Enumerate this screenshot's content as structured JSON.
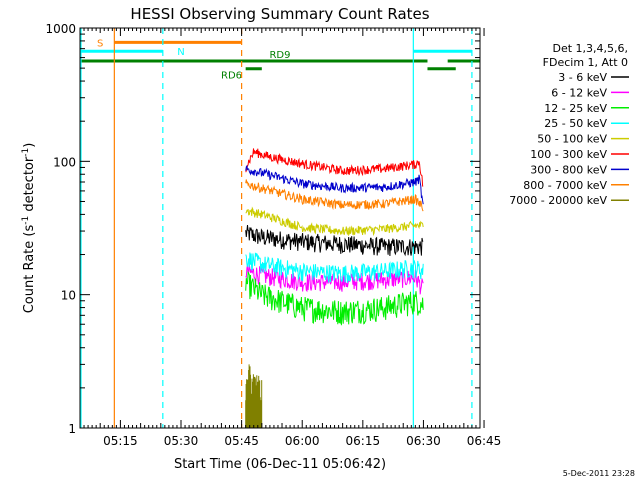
{
  "chart_data": {
    "type": "line",
    "title": "HESSI Observing Summary Count Rates",
    "xlabel": "Start Time (06-Dec-11 05:06:42)",
    "ylabel_main": "Count Rate (s",
    "ylabel_sup1": "-1",
    "ylabel_mid": " detector",
    "ylabel_sup2": "-1",
    "ylabel_end": ")",
    "yscale": "log",
    "ylim": [
      1,
      1000
    ],
    "xlim_minutes": [
      5.0,
      104.0
    ],
    "x_ticks": [
      {
        "label": "05:15",
        "minutes": 15
      },
      {
        "label": "05:30",
        "minutes": 30
      },
      {
        "label": "05:45",
        "minutes": 45
      },
      {
        "label": "06:00",
        "minutes": 60
      },
      {
        "label": "06:15",
        "minutes": 75
      },
      {
        "label": "06:30",
        "minutes": 90
      },
      {
        "label": "06:45",
        "minutes": 105
      }
    ],
    "y_ticks": [
      {
        "label": "1",
        "value": 1
      },
      {
        "label": "10",
        "value": 10
      },
      {
        "label": "100",
        "value": 100
      },
      {
        "label": "1000",
        "value": 1000
      }
    ],
    "legend": {
      "header1": "Det 1,3,4,5,6,",
      "header2": "FDecim 1, Att 0",
      "placement": "right"
    },
    "series": [
      {
        "name": "3 - 6 keV",
        "color": "#000000",
        "points": [
          [
            46,
            29
          ],
          [
            50,
            27
          ],
          [
            60,
            25
          ],
          [
            70,
            24
          ],
          [
            80,
            23
          ],
          [
            88,
            23
          ],
          [
            90,
            23
          ]
        ]
      },
      {
        "name": "6 - 12 keV",
        "color": "#ff00ff",
        "points": [
          [
            46,
            15
          ],
          [
            50,
            14
          ],
          [
            60,
            12.5
          ],
          [
            70,
            12.5
          ],
          [
            80,
            13
          ],
          [
            88,
            13.5
          ],
          [
            90,
            11
          ]
        ]
      },
      {
        "name": "12 - 25 keV",
        "color": "#00ee00",
        "points": [
          [
            46,
            12.5
          ],
          [
            50,
            10
          ],
          [
            60,
            8
          ],
          [
            70,
            7.5
          ],
          [
            80,
            8
          ],
          [
            88,
            9
          ],
          [
            90,
            8.5
          ]
        ]
      },
      {
        "name": "25 - 50 keV",
        "color": "#00ffff",
        "points": [
          [
            46,
            19
          ],
          [
            50,
            17
          ],
          [
            60,
            15
          ],
          [
            70,
            14.5
          ],
          [
            80,
            15
          ],
          [
            88,
            16
          ],
          [
            90,
            15
          ]
        ]
      },
      {
        "name": "50 - 100 keV",
        "color": "#cccc00",
        "points": [
          [
            46,
            43
          ],
          [
            50,
            40
          ],
          [
            60,
            32
          ],
          [
            70,
            30
          ],
          [
            80,
            31
          ],
          [
            88,
            33
          ],
          [
            90,
            33
          ]
        ]
      },
      {
        "name": "100 - 300 keV",
        "color": "#ff0000",
        "points": [
          [
            46,
            90
          ],
          [
            48,
            118
          ],
          [
            52,
            108
          ],
          [
            60,
            96
          ],
          [
            70,
            85
          ],
          [
            80,
            88
          ],
          [
            88,
            95
          ],
          [
            89,
            100
          ],
          [
            90,
            62
          ]
        ]
      },
      {
        "name": "300 - 800 keV",
        "color": "#0000cc",
        "points": [
          [
            46,
            88
          ],
          [
            50,
            82
          ],
          [
            60,
            68
          ],
          [
            70,
            63
          ],
          [
            80,
            64
          ],
          [
            88,
            70
          ],
          [
            89,
            74
          ],
          [
            90,
            44
          ]
        ]
      },
      {
        "name": "800 - 7000 keV",
        "color": "#ff8000",
        "points": [
          [
            46,
            68
          ],
          [
            50,
            63
          ],
          [
            60,
            52
          ],
          [
            70,
            47
          ],
          [
            80,
            48
          ],
          [
            88,
            52
          ],
          [
            90,
            45
          ]
        ]
      },
      {
        "name": "7000 - 20000 keV",
        "color": "#808000",
        "points": [
          [
            46,
            1.6
          ],
          [
            47,
            2.4
          ],
          [
            48,
            2.0
          ],
          [
            49,
            1.9
          ],
          [
            50,
            1.7
          ]
        ]
      }
    ],
    "vertical_lines": [
      {
        "minutes": 13.5,
        "color": "#ff8000",
        "style": "solid"
      },
      {
        "minutes": 25.5,
        "color": "#00ffff",
        "style": "dashed"
      },
      {
        "minutes": 45.0,
        "color": "#ff8000",
        "style": "dashed"
      },
      {
        "minutes": 87.5,
        "color": "#00ffff",
        "style": "solid"
      },
      {
        "minutes": 102.0,
        "color": "#00ffff",
        "style": "dashed"
      }
    ],
    "flag_bars": [
      {
        "label": "S",
        "color": "#ff8000",
        "x0": 13.5,
        "x1": 45.0,
        "y": 780,
        "label_at": 10.0
      },
      {
        "label": "N",
        "color": "#00ffff",
        "x0": 5.0,
        "x1": 25.5,
        "y": 670,
        "label_at": 30.0
      },
      {
        "label": "",
        "color": "#00ffff",
        "x0": 87.5,
        "x1": 102.0,
        "y": 670,
        "label_at": 0
      },
      {
        "label": "RD9",
        "color": "#008000",
        "x0": 5.0,
        "x1": 91.0,
        "y": 565,
        "label_at": 54.5
      },
      {
        "label": "",
        "color": "#008000",
        "x0": 96.0,
        "x1": 104.0,
        "y": 565,
        "label_at": 0
      },
      {
        "label": "RD6",
        "color": "#008000",
        "x0": 46.0,
        "x1": 50.0,
        "y": 495,
        "label_at": 42.5
      },
      {
        "label": "",
        "color": "#008000",
        "x0": 91.0,
        "x1": 98.0,
        "y": 495,
        "label_at": 0
      }
    ],
    "grid": false
  },
  "footer": {
    "date_stamp": "5-Dec-2011 23:28"
  }
}
